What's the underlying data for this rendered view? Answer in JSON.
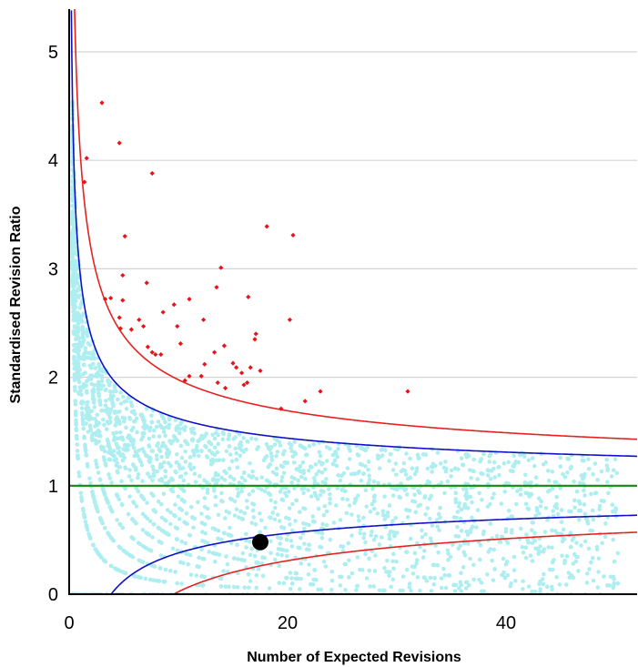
{
  "chart_data": {
    "type": "scatter",
    "title": "",
    "xlabel": "Number of Expected Revisions",
    "ylabel": "Standardised Revision Ratio",
    "xlim": [
      0,
      52
    ],
    "ylim": [
      0,
      5.4
    ],
    "xticks": [
      0,
      20,
      40
    ],
    "yticks": [
      0,
      1,
      2,
      3,
      4,
      5
    ],
    "grid": "horizontal",
    "target_line": 1,
    "colors": {
      "background_points": "#aeeef0",
      "outlier_points": "#e8141c",
      "highlight_point": "#000000",
      "reference_line": "#118a11",
      "inner_limits": "#1010c8",
      "outer_limits": "#e52222",
      "grid": "#d4d4d4"
    },
    "control_limits": [
      {
        "kind": "upper-outer",
        "z": 3.09
      },
      {
        "kind": "upper-inner",
        "z": 1.96
      },
      {
        "kind": "lower-inner",
        "z": -1.96
      },
      {
        "kind": "lower-outer",
        "z": -3.09
      }
    ],
    "outlier_points": [
      [
        3.0,
        4.53
      ],
      [
        1.6,
        4.02
      ],
      [
        1.4,
        3.8
      ],
      [
        4.6,
        4.16
      ],
      [
        7.6,
        3.88
      ],
      [
        5.1,
        3.3
      ],
      [
        4.9,
        2.94
      ],
      [
        4.9,
        2.71
      ],
      [
        3.3,
        2.72
      ],
      [
        3.8,
        2.73
      ],
      [
        4.6,
        2.55
      ],
      [
        4.7,
        2.45
      ],
      [
        5.7,
        2.44
      ],
      [
        6.4,
        2.53
      ],
      [
        6.8,
        2.47
      ],
      [
        7.1,
        2.87
      ],
      [
        7.2,
        2.28
      ],
      [
        7.6,
        2.23
      ],
      [
        7.9,
        2.21
      ],
      [
        8.4,
        2.21
      ],
      [
        8.6,
        2.6
      ],
      [
        9.6,
        2.67
      ],
      [
        9.9,
        2.47
      ],
      [
        10.2,
        2.31
      ],
      [
        10.6,
        1.97
      ],
      [
        11.0,
        2.72
      ],
      [
        11.0,
        2.01
      ],
      [
        12.1,
        2.01
      ],
      [
        12.3,
        2.53
      ],
      [
        12.4,
        2.12
      ],
      [
        13.3,
        2.23
      ],
      [
        13.5,
        2.83
      ],
      [
        13.9,
        3.01
      ],
      [
        13.6,
        1.95
      ],
      [
        14.2,
        2.29
      ],
      [
        14.3,
        1.9
      ],
      [
        15.0,
        2.13
      ],
      [
        15.3,
        2.09
      ],
      [
        15.8,
        2.04
      ],
      [
        16.0,
        1.93
      ],
      [
        16.3,
        1.95
      ],
      [
        16.4,
        2.74
      ],
      [
        16.6,
        2.09
      ],
      [
        17.0,
        2.35
      ],
      [
        17.1,
        2.4
      ],
      [
        17.5,
        2.06
      ],
      [
        18.1,
        3.39
      ],
      [
        20.2,
        2.53
      ],
      [
        20.5,
        3.31
      ],
      [
        19.4,
        1.71
      ],
      [
        21.6,
        1.78
      ],
      [
        23.0,
        1.87
      ],
      [
        31.0,
        1.87
      ]
    ],
    "highlight_point": [
      17.5,
      0.48
    ]
  }
}
